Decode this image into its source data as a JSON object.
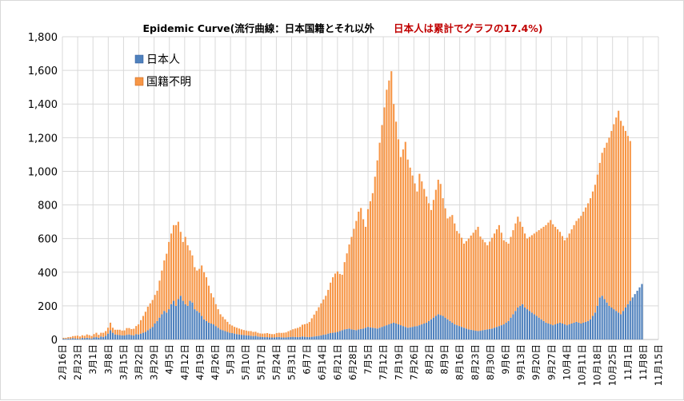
{
  "chart_data": {
    "type": "bar",
    "stacked": true,
    "title": "Epidemic Curve(流行曲線：日本国籍とそれ以外",
    "subtitle": "日本人は累計でグラフの17.4%)",
    "ylim": [
      0,
      1800
    ],
    "yticks": [
      "0",
      "200",
      "400",
      "600",
      "800",
      "1,000",
      "1,200",
      "1,400",
      "1,600",
      "1,800"
    ],
    "grid": true,
    "legend_position": "top-left",
    "xtick_labels": [
      "2月16日",
      "2月23日",
      "3月1日",
      "3月8日",
      "3月15日",
      "3月22日",
      "3月29日",
      "4月5日",
      "4月12日",
      "4月19日",
      "4月26日",
      "5月3日",
      "5月10日",
      "5月17日",
      "5月24日",
      "5月31日",
      "6月7日",
      "6月14日",
      "6月21日",
      "6月28日",
      "7月5日",
      "7月12日",
      "7月19日",
      "7月26日",
      "8月2日",
      "8月9日",
      "8月16日",
      "8月23日",
      "8月30日",
      "9月6日",
      "9月13日",
      "9月20日",
      "9月27日",
      "10月4日",
      "10月11日",
      "10月18日",
      "10月25日",
      "11月1日",
      "11月8日",
      "11月15日"
    ],
    "series": [
      {
        "name": "日本人",
        "color": "#4f81bd",
        "values": [
          5,
          4,
          6,
          5,
          8,
          6,
          5,
          4,
          9,
          7,
          10,
          8,
          6,
          12,
          14,
          10,
          18,
          15,
          22,
          35,
          55,
          40,
          30,
          28,
          26,
          25,
          24,
          28,
          30,
          26,
          24,
          32,
          30,
          35,
          40,
          45,
          55,
          65,
          75,
          95,
          110,
          130,
          150,
          170,
          160,
          180,
          210,
          230,
          200,
          240,
          260,
          230,
          210,
          200,
          230,
          220,
          180,
          170,
          160,
          140,
          120,
          110,
          100,
          95,
          90,
          80,
          70,
          60,
          55,
          50,
          45,
          40,
          38,
          35,
          32,
          30,
          28,
          26,
          25,
          24,
          22,
          20,
          22,
          18,
          16,
          15,
          14,
          14,
          12,
          12,
          12,
          14,
          15,
          13,
          12,
          12,
          14,
          15,
          16,
          15,
          14,
          15,
          18,
          16,
          15,
          14,
          16,
          18,
          20,
          22,
          25,
          28,
          30,
          35,
          38,
          40,
          42,
          45,
          50,
          55,
          60,
          62,
          65,
          60,
          58,
          55,
          60,
          62,
          65,
          70,
          75,
          72,
          70,
          68,
          65,
          70,
          75,
          80,
          85,
          90,
          95,
          100,
          95,
          90,
          85,
          80,
          75,
          70,
          72,
          75,
          78,
          80,
          85,
          90,
          95,
          100,
          110,
          120,
          130,
          140,
          150,
          145,
          140,
          130,
          120,
          110,
          100,
          90,
          85,
          80,
          75,
          70,
          65,
          60,
          58,
          55,
          52,
          50,
          52,
          55,
          58,
          60,
          62,
          65,
          70,
          75,
          80,
          85,
          90,
          100,
          110,
          130,
          150,
          170,
          190,
          200,
          210,
          190,
          180,
          170,
          160,
          150,
          140,
          130,
          120,
          110,
          100,
          95,
          90,
          85,
          90,
          95,
          100,
          95,
          90,
          85,
          90,
          95,
          100,
          105,
          100,
          95,
          100,
          105,
          110,
          120,
          140,
          160,
          200,
          250,
          260,
          240,
          220,
          200,
          190,
          180,
          170,
          160,
          150,
          170,
          190,
          210,
          230,
          250,
          270,
          290,
          310,
          330
        ]
      },
      {
        "name": "国籍不明",
        "color": "#f79646",
        "values": [
          5,
          6,
          8,
          10,
          12,
          15,
          18,
          14,
          16,
          15,
          20,
          18,
          15,
          20,
          26,
          18,
          22,
          25,
          28,
          35,
          45,
          30,
          28,
          30,
          32,
          28,
          30,
          40,
          38,
          36,
          40,
          48,
          60,
          80,
          100,
          120,
          140,
          150,
          160,
          170,
          180,
          220,
          260,
          300,
          350,
          400,
          420,
          450,
          480,
          460,
          380,
          350,
          400,
          360,
          300,
          280,
          250,
          240,
          260,
          300,
          280,
          260,
          220,
          180,
          160,
          130,
          110,
          90,
          80,
          70,
          60,
          50,
          45,
          40,
          38,
          35,
          32,
          30,
          28,
          26,
          28,
          25,
          24,
          22,
          20,
          20,
          22,
          24,
          22,
          20,
          20,
          24,
          25,
          26,
          28,
          30,
          35,
          40,
          45,
          50,
          55,
          60,
          70,
          75,
          80,
          90,
          110,
          130,
          150,
          170,
          190,
          210,
          230,
          260,
          300,
          330,
          350,
          360,
          340,
          330,
          400,
          450,
          500,
          550,
          600,
          650,
          700,
          720,
          650,
          600,
          700,
          750,
          800,
          900,
          1000,
          1100,
          1200,
          1300,
          1400,
          1450,
          1500,
          1300,
          1200,
          1100,
          1000,
          1050,
          1100,
          1000,
          950,
          900,
          850,
          800,
          900,
          850,
          800,
          750,
          700,
          650,
          700,
          750,
          800,
          780,
          700,
          650,
          600,
          620,
          640,
          600,
          560,
          550,
          530,
          500,
          520,
          540,
          560,
          580,
          600,
          620,
          560,
          540,
          520,
          500,
          520,
          540,
          560,
          580,
          600,
          550,
          500,
          480,
          460,
          480,
          500,
          520,
          540,
          500,
          460,
          440,
          420,
          440,
          460,
          480,
          500,
          520,
          540,
          560,
          580,
          600,
          620,
          600,
          580,
          560,
          540,
          520,
          500,
          520,
          540,
          560,
          580,
          600,
          620,
          640,
          660,
          680,
          700,
          720,
          740,
          760,
          780,
          800,
          850,
          900,
          950,
          1000,
          1050,
          1100,
          1150,
          1200,
          1150,
          1100,
          1050,
          1000,
          950
        ]
      }
    ]
  }
}
